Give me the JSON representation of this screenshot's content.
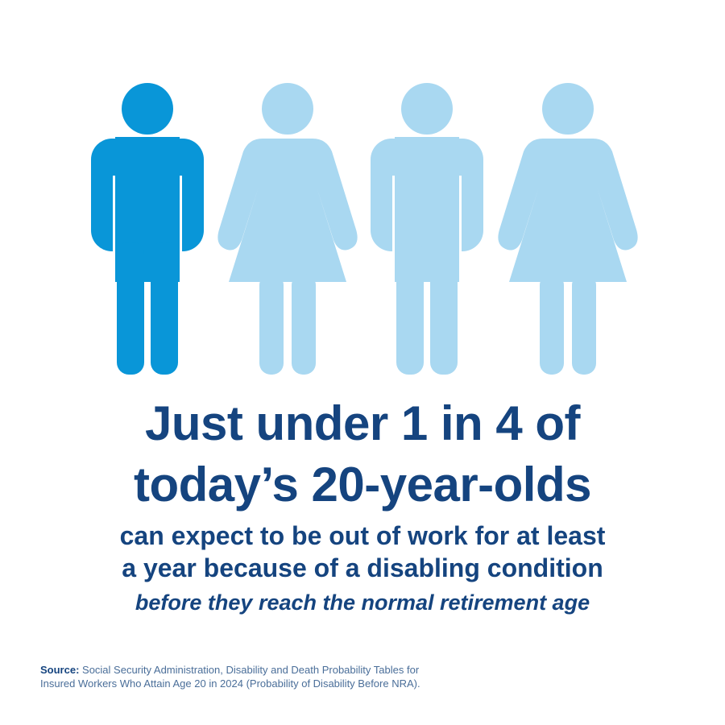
{
  "figures": [
    {
      "type": "male",
      "highlighted": true
    },
    {
      "type": "female",
      "highlighted": false
    },
    {
      "type": "male",
      "highlighted": false
    },
    {
      "type": "female",
      "highlighted": false
    }
  ],
  "colors": {
    "highlight": "#0996d8",
    "muted": "#a9d8f1",
    "text": "#15447f",
    "source_text": "#4a6e99"
  },
  "headline": {
    "line1": "Just under 1 in 4 of",
    "line2": "today’s 20-year-olds"
  },
  "subhead": {
    "line1": "can expect to be out of work for at least",
    "line2": "a year because of a disabling condition"
  },
  "note": "before they reach the normal retirement age",
  "source": {
    "label": "Source:",
    "text": " Social Security Administration, Disability and Death Probability Tables for Insured Workers Who Attain Age 20 in 2024 (Probability of Disability Before NRA)."
  }
}
